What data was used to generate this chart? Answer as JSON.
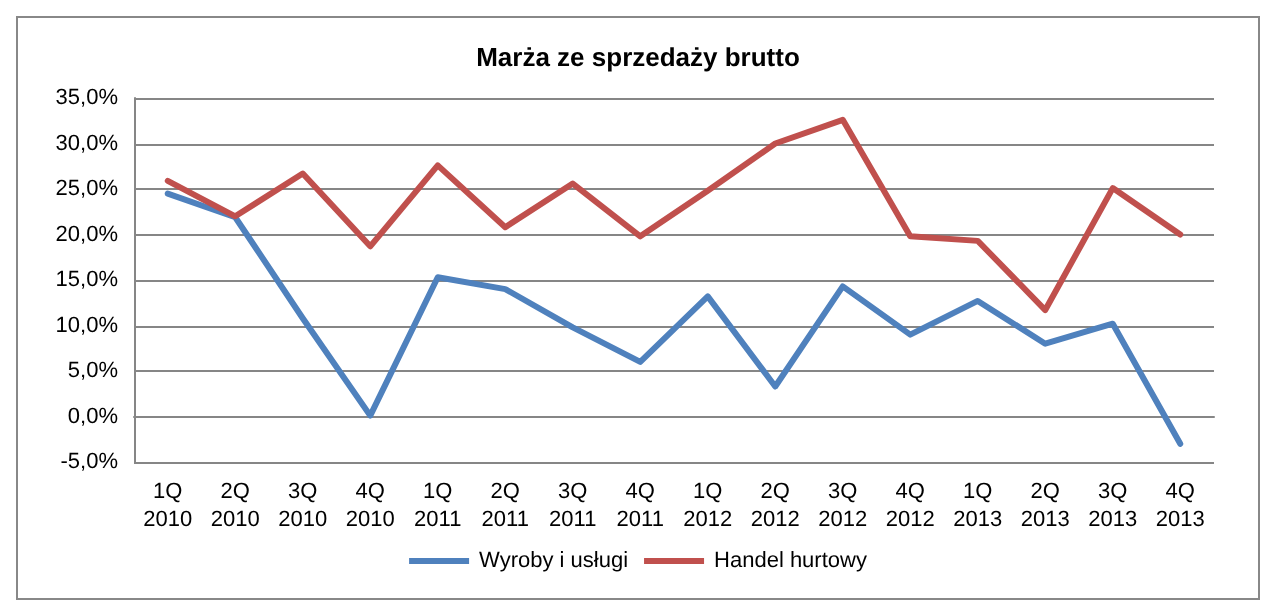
{
  "chart_data": {
    "type": "line",
    "title": "Marża ze sprzedaży brutto",
    "categories": [
      "1Q\n2010",
      "2Q\n2010",
      "3Q\n2010",
      "4Q\n2010",
      "1Q\n2011",
      "2Q\n2011",
      "3Q\n2011",
      "4Q\n2011",
      "1Q\n2012",
      "2Q\n2012",
      "3Q\n2012",
      "4Q\n2012",
      "1Q\n2013",
      "2Q\n2013",
      "3Q\n2013",
      "4Q\n2013"
    ],
    "series": [
      {
        "name": "Wyroby i usługi",
        "color": "#4f81bd",
        "values": [
          24.5,
          21.9,
          10.8,
          0.1,
          15.3,
          14.0,
          9.8,
          6.0,
          13.2,
          3.3,
          14.3,
          9.0,
          12.7,
          8.0,
          10.2,
          -3.0
        ]
      },
      {
        "name": "Handel hurtowy",
        "color": "#c0504d",
        "values": [
          25.9,
          22.0,
          26.7,
          18.7,
          27.6,
          20.8,
          25.6,
          19.8,
          24.8,
          30.0,
          32.6,
          19.8,
          19.3,
          11.7,
          25.1,
          20.0
        ]
      }
    ],
    "ylim": [
      -5,
      35
    ],
    "yticks": [
      {
        "value": -5,
        "label": "-5,0%"
      },
      {
        "value": 0,
        "label": "0,0%"
      },
      {
        "value": 5,
        "label": "5,0%"
      },
      {
        "value": 10,
        "label": "10,0%"
      },
      {
        "value": 15,
        "label": "15,0%"
      },
      {
        "value": 20,
        "label": "20,0%"
      },
      {
        "value": 25,
        "label": "25,0%"
      },
      {
        "value": 30,
        "label": "30,0%"
      },
      {
        "value": 35,
        "label": "35,0%"
      }
    ],
    "grid": "y",
    "legend": "bottom",
    "marker": "none",
    "line_style": "solid"
  }
}
